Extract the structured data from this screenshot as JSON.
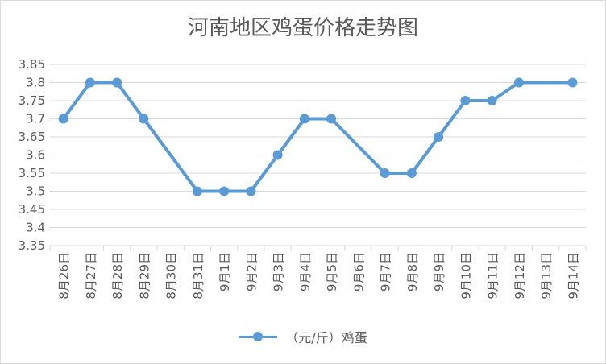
{
  "colors": {
    "series": "#5b9bd5",
    "grid": "#d9d9d9",
    "text": "#595959"
  },
  "chart_data": {
    "type": "line",
    "title": "河南地区鸡蛋价格走势图",
    "xlabel": "",
    "ylabel": "",
    "ylim": [
      3.35,
      3.85
    ],
    "y_ticks": [
      "3.85",
      "3.8",
      "3.75",
      "3.7",
      "3.65",
      "3.6",
      "3.55",
      "3.5",
      "3.45",
      "3.4",
      "3.35"
    ],
    "grid": true,
    "legend_position": "bottom",
    "categories": [
      "8月26日",
      "8月27日",
      "8月28日",
      "8月29日",
      "8月30日",
      "8月31日",
      "9月1日",
      "9月2日",
      "9月3日",
      "9月4日",
      "9月5日",
      "9月6日",
      "9月7日",
      "9月8日",
      "9月9日",
      "9月10日",
      "9月11日",
      "9月12日",
      "9月13日",
      "9月14日"
    ],
    "series": [
      {
        "name": "（元/斤）鸡蛋",
        "values": [
          3.7,
          3.8,
          3.8,
          3.7,
          null,
          3.5,
          3.5,
          3.5,
          3.6,
          3.7,
          3.7,
          null,
          3.55,
          3.55,
          3.65,
          3.75,
          3.75,
          3.8,
          null,
          3.8
        ]
      }
    ]
  }
}
